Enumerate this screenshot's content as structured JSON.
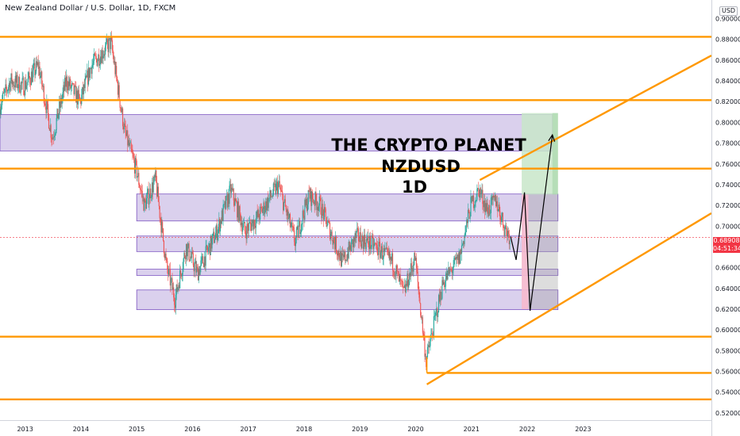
{
  "header": {
    "symbol_title": "New Zealand Dollar / U.S. Dollar, 1D, FXCM",
    "currency_badge": "USD"
  },
  "price_tag": {
    "price": "0.68908",
    "countdown": "04:51:34",
    "color": "#f23645"
  },
  "overlay_text": {
    "line1": "THE CRYPTO PLANET",
    "line2": "NZDUSD",
    "line3": "1D"
  },
  "colors": {
    "level_line": "#ff9800",
    "zone_fill": "#d1c4e9",
    "zone_stroke": "#7e57c2",
    "candle_up": "#26a69a",
    "candle_down": "#ef5350",
    "target_zone": "#c8e6c9",
    "stop_zone": "#f8bbd0",
    "target_dark": "#a5d6a7"
  },
  "chart_data": {
    "type": "candlestick",
    "symbol": "NZDUSD",
    "timeframe": "1D",
    "x_ticks": [
      "2013",
      "2014",
      "2015",
      "2016",
      "2017",
      "2018",
      "2019",
      "2020",
      "2021",
      "2022",
      "2023"
    ],
    "y_ticks": [
      "0.52000",
      "0.54000",
      "0.56000",
      "0.58000",
      "0.60000",
      "0.62000",
      "0.64000",
      "0.66000",
      "0.68000",
      "0.70000",
      "0.72000",
      "0.74000",
      "0.76000",
      "0.78000",
      "0.80000",
      "0.82000",
      "0.84000",
      "0.86000",
      "0.88000",
      "0.90000"
    ],
    "ylim": [
      0.513,
      0.918
    ],
    "xlim": [
      2012.55,
      2025.3
    ],
    "last_price": 0.68908,
    "price_path": [
      {
        "t": 2012.55,
        "p": 0.815
      },
      {
        "t": 2012.75,
        "p": 0.84
      },
      {
        "t": 2013.0,
        "p": 0.835
      },
      {
        "t": 2013.25,
        "p": 0.855
      },
      {
        "t": 2013.5,
        "p": 0.785
      },
      {
        "t": 2013.75,
        "p": 0.84
      },
      {
        "t": 2014.0,
        "p": 0.82
      },
      {
        "t": 2014.2,
        "p": 0.855
      },
      {
        "t": 2014.55,
        "p": 0.877
      },
      {
        "t": 2014.8,
        "p": 0.79
      },
      {
        "t": 2015.0,
        "p": 0.755
      },
      {
        "t": 2015.15,
        "p": 0.72
      },
      {
        "t": 2015.35,
        "p": 0.745
      },
      {
        "t": 2015.55,
        "p": 0.66
      },
      {
        "t": 2015.7,
        "p": 0.63
      },
      {
        "t": 2015.9,
        "p": 0.68
      },
      {
        "t": 2016.1,
        "p": 0.655
      },
      {
        "t": 2016.45,
        "p": 0.695
      },
      {
        "t": 2016.7,
        "p": 0.735
      },
      {
        "t": 2016.95,
        "p": 0.695
      },
      {
        "t": 2017.2,
        "p": 0.71
      },
      {
        "t": 2017.55,
        "p": 0.74
      },
      {
        "t": 2017.85,
        "p": 0.685
      },
      {
        "t": 2018.1,
        "p": 0.73
      },
      {
        "t": 2018.3,
        "p": 0.72
      },
      {
        "t": 2018.7,
        "p": 0.665
      },
      {
        "t": 2018.95,
        "p": 0.69
      },
      {
        "t": 2019.3,
        "p": 0.68
      },
      {
        "t": 2019.6,
        "p": 0.665
      },
      {
        "t": 2019.8,
        "p": 0.635
      },
      {
        "t": 2020.0,
        "p": 0.67
      },
      {
        "t": 2020.2,
        "p": 0.57
      },
      {
        "t": 2020.3,
        "p": 0.595
      },
      {
        "t": 2020.5,
        "p": 0.645
      },
      {
        "t": 2020.8,
        "p": 0.67
      },
      {
        "t": 2021.0,
        "p": 0.72
      },
      {
        "t": 2021.15,
        "p": 0.735
      },
      {
        "t": 2021.3,
        "p": 0.715
      },
      {
        "t": 2021.45,
        "p": 0.725
      },
      {
        "t": 2021.6,
        "p": 0.7
      },
      {
        "t": 2021.7,
        "p": 0.69
      }
    ],
    "horizontal_levels": [
      0.8825,
      0.8215,
      0.7555,
      0.5935,
      0.5585,
      0.533
    ],
    "zones": [
      {
        "t1": 2012.55,
        "t2": 2022.45,
        "low": 0.7725,
        "high": 0.8075
      },
      {
        "t1": 2015.0,
        "t2": 2022.55,
        "low": 0.705,
        "high": 0.731
      },
      {
        "t1": 2015.0,
        "t2": 2022.55,
        "low": 0.6755,
        "high": 0.6905
      },
      {
        "t1": 2015.0,
        "t2": 2022.55,
        "low": 0.6525,
        "high": 0.6585
      },
      {
        "t1": 2015.0,
        "t2": 2022.55,
        "low": 0.6195,
        "high": 0.6385
      }
    ],
    "trend_lines": [
      {
        "t1": 2020.2,
        "p1": 0.5475,
        "t2": 2025.3,
        "p2": 0.7125
      },
      {
        "t1": 2021.15,
        "p1": 0.7445,
        "t2": 2025.3,
        "p2": 0.8645
      }
    ],
    "position": {
      "t1": 2021.9,
      "t2": 2022.55,
      "entry": 0.7305,
      "stop_low": 0.62,
      "target": 0.809
    },
    "projection": [
      {
        "t": 2021.7,
        "p": 0.69
      },
      {
        "t": 2021.8,
        "p": 0.6675
      },
      {
        "t": 2021.95,
        "p": 0.7325
      },
      {
        "t": 2022.05,
        "p": 0.6185
      },
      {
        "t": 2022.45,
        "p": 0.788
      }
    ]
  }
}
